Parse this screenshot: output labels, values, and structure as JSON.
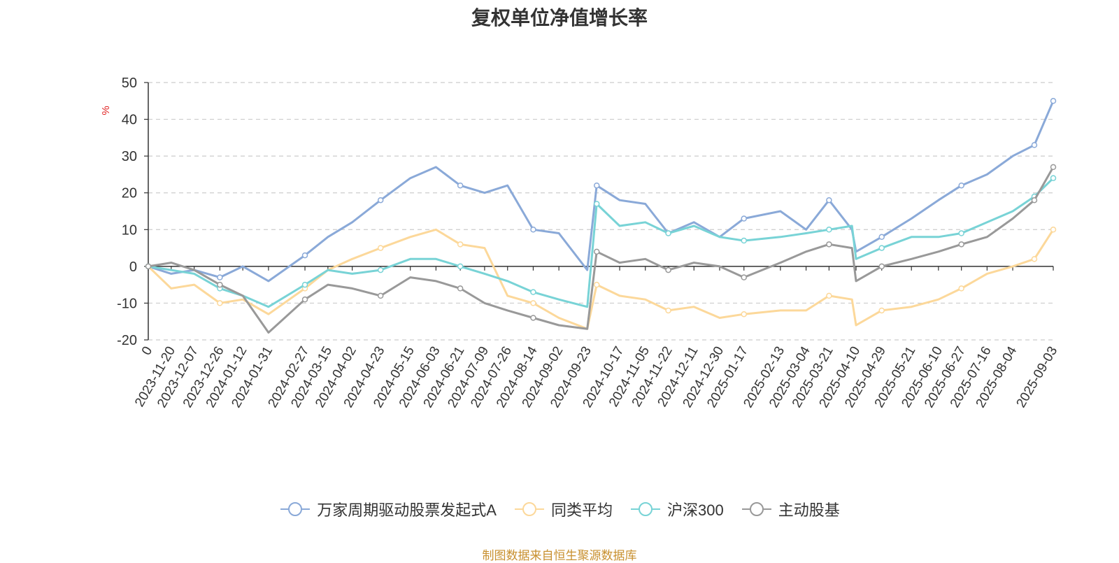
{
  "chart_data": {
    "type": "line",
    "title": "复权单位净值增长率",
    "ylabel": "%",
    "ylim": [
      -20,
      50
    ],
    "yticks": [
      50,
      40,
      30,
      20,
      10,
      0,
      -10,
      -20
    ],
    "grid": true,
    "legend_position": "bottom",
    "x_tick_labels": [
      "0",
      "2023-11-20",
      "2023-12-07",
      "2023-12-26",
      "2024-01-12",
      "2024-01-31",
      "2024-02-27",
      "2024-03-15",
      "2024-04-02",
      "2024-04-23",
      "2024-05-15",
      "2024-06-03",
      "2024-06-21",
      "2024-07-09",
      "2024-07-26",
      "2024-08-14",
      "2024-09-02",
      "2024-09-23",
      "2024-10-17",
      "2024-11-05",
      "2024-11-22",
      "2024-12-11",
      "2024-12-30",
      "2025-01-17",
      "2025-02-13",
      "2025-03-04",
      "2025-03-21",
      "2025-04-10",
      "2025-04-29",
      "2025-05-21",
      "2025-06-10",
      "2025-06-27",
      "2025-07-16",
      "2025-08-04",
      "2025-09-03"
    ],
    "x": [
      "0",
      "2023-11-20",
      "2023-12-07",
      "2023-12-26",
      "2024-01-12",
      "2024-01-31",
      "2024-02-27",
      "2024-03-15",
      "2024-04-02",
      "2024-04-23",
      "2024-05-15",
      "2024-06-03",
      "2024-06-21",
      "2024-07-09",
      "2024-07-26",
      "2024-08-14",
      "2024-09-02",
      "2024-09-23",
      "2024-09-30",
      "2024-10-17",
      "2024-11-05",
      "2024-11-22",
      "2024-12-11",
      "2024-12-30",
      "2025-01-17",
      "2025-02-13",
      "2025-03-04",
      "2025-03-21",
      "2025-04-07",
      "2025-04-10",
      "2025-04-29",
      "2025-05-21",
      "2025-06-10",
      "2025-06-27",
      "2025-07-16",
      "2025-08-04",
      "2025-08-20",
      "2025-09-03"
    ],
    "series": [
      {
        "name": "万家周期驱动股票发起式A",
        "color": "#8aa9d8",
        "values": [
          0,
          -2,
          -1,
          -3,
          0,
          -4,
          3,
          8,
          12,
          18,
          24,
          27,
          22,
          20,
          22,
          10,
          9,
          -1,
          22,
          18,
          17,
          9,
          12,
          8,
          13,
          15,
          10,
          18,
          10,
          4,
          8,
          13,
          18,
          22,
          25,
          30,
          33,
          45
        ]
      },
      {
        "name": "同类平均",
        "color": "#fcd89a",
        "values": [
          0,
          -6,
          -5,
          -10,
          -9,
          -13,
          -6,
          -1,
          2,
          5,
          8,
          10,
          6,
          5,
          -8,
          -10,
          -14,
          -17,
          -5,
          -8,
          -9,
          -12,
          -11,
          -14,
          -13,
          -12,
          -12,
          -8,
          -9,
          -16,
          -12,
          -11,
          -9,
          -6,
          -2,
          0,
          2,
          10
        ]
      },
      {
        "name": "沪深300",
        "color": "#78d3d6",
        "values": [
          0,
          -1,
          -2,
          -6,
          -8,
          -11,
          -5,
          -1,
          -2,
          -1,
          2,
          2,
          0,
          -2,
          -4,
          -7,
          -9,
          -11,
          17,
          11,
          12,
          9,
          11,
          8,
          7,
          8,
          9,
          10,
          11,
          2,
          5,
          8,
          8,
          9,
          12,
          15,
          19,
          24
        ]
      },
      {
        "name": "主动股基",
        "color": "#999999",
        "values": [
          0,
          1,
          -1,
          -5,
          -8,
          -18,
          -9,
          -5,
          -6,
          -8,
          -3,
          -4,
          -6,
          -10,
          -12,
          -14,
          -16,
          -17,
          4,
          1,
          2,
          -1,
          1,
          0,
          -3,
          1,
          4,
          6,
          5,
          -4,
          0,
          2,
          4,
          6,
          8,
          13,
          18,
          27
        ]
      }
    ]
  },
  "source_note": "制图数据来自恒生聚源数据库"
}
